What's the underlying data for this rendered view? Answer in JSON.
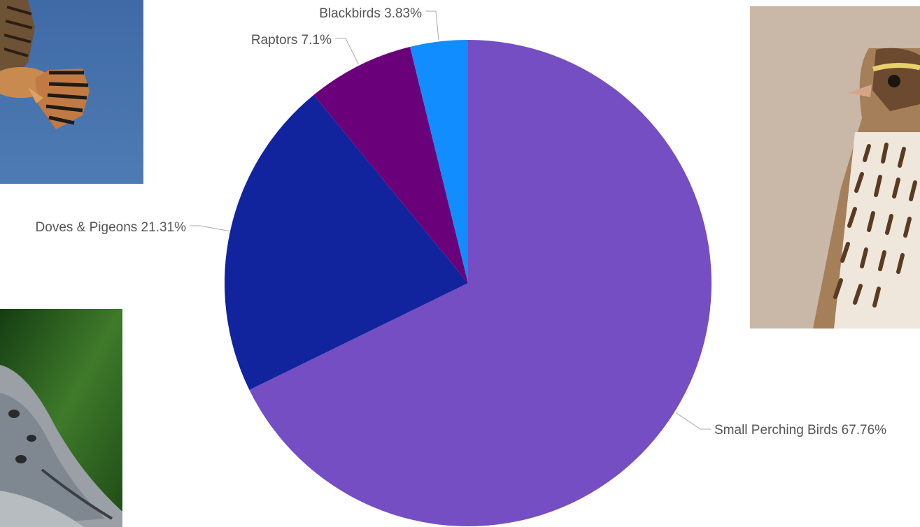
{
  "chart_data": {
    "type": "pie",
    "slices": [
      {
        "label": "Small Perching Birds",
        "value": 67.76,
        "display": "Small Perching Birds 67.76%",
        "color": "#744EC2"
      },
      {
        "label": "Doves & Pigeons",
        "value": 21.31,
        "display": "Doves & Pigeons 21.31%",
        "color": "#12239E"
      },
      {
        "label": "Raptors",
        "value": 7.1,
        "display": "Raptors 7.1%",
        "color": "#6B007B"
      },
      {
        "label": "Blackbirds",
        "value": 3.83,
        "display": "Blackbirds 3.83%",
        "color": "#118DFF"
      }
    ],
    "start_angle_deg": 0,
    "direction": "clockwise",
    "leader_line_color": "#AAAAAA",
    "label_color": "#555555"
  },
  "images": [
    {
      "name": "kestrel-photo",
      "subject": "kestrel in flight against blue sky"
    },
    {
      "name": "sparrow-photo",
      "subject": "streaked sparrow portrait"
    },
    {
      "name": "dove-photo",
      "subject": "mourning dove on green background"
    }
  ]
}
